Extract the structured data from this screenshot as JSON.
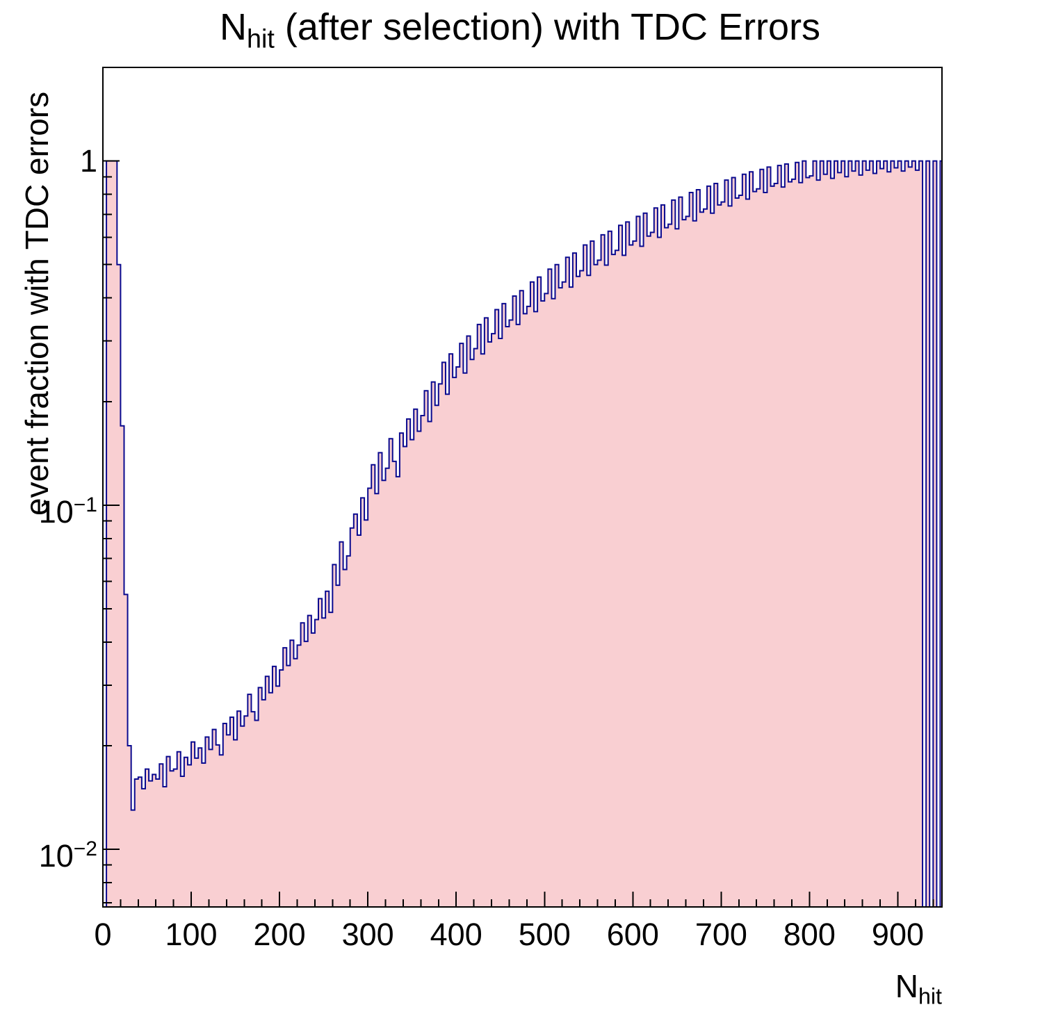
{
  "title": {
    "prefix": "N",
    "sub": "hit",
    "rest": " (after selection) with TDC Errors"
  },
  "axes": {
    "x": {
      "title_prefix": "N",
      "title_sub": "hit",
      "min": 0,
      "max": 950,
      "major_step": 100,
      "minor_step": 20,
      "tick_labels": [
        "0",
        "100",
        "200",
        "300",
        "400",
        "500",
        "600",
        "700",
        "800",
        "900"
      ]
    },
    "y": {
      "title": "event fraction with TDC errors",
      "scale": "log",
      "min": 0.0068,
      "max": 1.87,
      "tick_labels": [
        {
          "value": 1,
          "mantissa": "1",
          "exponent": null
        },
        {
          "value": 0.1,
          "mantissa": "10",
          "exponent": "−1"
        },
        {
          "value": 0.01,
          "mantissa": "10",
          "exponent": "−2"
        }
      ]
    }
  },
  "style": {
    "fill_color": "#f9cfd2",
    "line_color": "#0a0a8f",
    "frame_color": "#000000",
    "background": "#ffffff",
    "text_color": "#000000"
  },
  "chart_data": {
    "type": "bar",
    "subtype": "histogram",
    "title": "N_hit (after selection) with TDC Errors",
    "xlabel": "N_hit",
    "ylabel": "event fraction with TDC errors",
    "yscale": "log",
    "xlim": [
      0,
      950
    ],
    "ylim": [
      0.0068,
      1.87
    ],
    "legend": "none",
    "grid": false,
    "bin_start": 0,
    "bin_width": 4,
    "n_bins": 238,
    "values": [
      0,
      1.0,
      1.0,
      1.0,
      0.5,
      0.17,
      0.055,
      0.02,
      0.013,
      0.016,
      0.0162,
      0.015,
      0.0171,
      0.0158,
      0.0165,
      0.016,
      0.0177,
      0.0152,
      0.0186,
      0.0169,
      0.0171,
      0.0192,
      0.0163,
      0.0185,
      0.0176,
      0.0205,
      0.0184,
      0.0197,
      0.0178,
      0.0212,
      0.0195,
      0.0223,
      0.0201,
      0.0188,
      0.0232,
      0.0215,
      0.0242,
      0.0208,
      0.0252,
      0.0228,
      0.0244,
      0.0282,
      0.0251,
      0.0237,
      0.0295,
      0.0272,
      0.0318,
      0.0285,
      0.034,
      0.0298,
      0.0332,
      0.0385,
      0.0342,
      0.0405,
      0.0358,
      0.0392,
      0.0455,
      0.0402,
      0.0478,
      0.0425,
      0.0465,
      0.0535,
      0.047,
      0.0562,
      0.0488,
      0.0672,
      0.0585,
      0.0782,
      0.065,
      0.0712,
      0.0858,
      0.0942,
      0.0818,
      0.105,
      0.0905,
      0.112,
      0.131,
      0.108,
      0.142,
      0.118,
      0.128,
      0.156,
      0.134,
      0.121,
      0.162,
      0.148,
      0.178,
      0.155,
      0.19,
      0.164,
      0.182,
      0.215,
      0.175,
      0.228,
      0.195,
      0.225,
      0.26,
      0.21,
      0.275,
      0.235,
      0.252,
      0.295,
      0.242,
      0.31,
      0.265,
      0.285,
      0.335,
      0.275,
      0.35,
      0.298,
      0.315,
      0.37,
      0.305,
      0.385,
      0.33,
      0.345,
      0.405,
      0.335,
      0.42,
      0.36,
      0.378,
      0.445,
      0.365,
      0.46,
      0.392,
      0.412,
      0.485,
      0.398,
      0.5,
      0.428,
      0.445,
      0.525,
      0.43,
      0.54,
      0.462,
      0.48,
      0.57,
      0.465,
      0.585,
      0.5,
      0.515,
      0.61,
      0.498,
      0.625,
      0.535,
      0.55,
      0.65,
      0.532,
      0.665,
      0.57,
      0.585,
      0.69,
      0.565,
      0.705,
      0.605,
      0.62,
      0.73,
      0.6,
      0.745,
      0.64,
      0.655,
      0.77,
      0.635,
      0.785,
      0.675,
      0.69,
      0.81,
      0.67,
      0.825,
      0.71,
      0.725,
      0.845,
      0.705,
      0.86,
      0.745,
      0.76,
      0.88,
      0.74,
      0.895,
      0.78,
      0.795,
      0.915,
      0.775,
      0.93,
      0.815,
      0.83,
      0.945,
      0.81,
      0.96,
      0.845,
      0.86,
      0.97,
      0.84,
      0.98,
      0.87,
      0.885,
      0.99,
      0.865,
      1.0,
      0.895,
      0.905,
      1.0,
      0.88,
      1.0,
      0.915,
      1.0,
      0.89,
      1.0,
      0.925,
      1.0,
      0.9,
      1.0,
      0.935,
      1.0,
      0.91,
      1.0,
      0.94,
      1.0,
      0.92,
      1.0,
      0.95,
      1.0,
      0.93,
      1.0,
      0.955,
      1.0,
      0.935,
      1.0,
      0.96,
      1.0,
      0.94,
      1.0,
      0.0,
      1.0,
      0.0,
      1.0,
      0.0,
      1.0
    ]
  }
}
